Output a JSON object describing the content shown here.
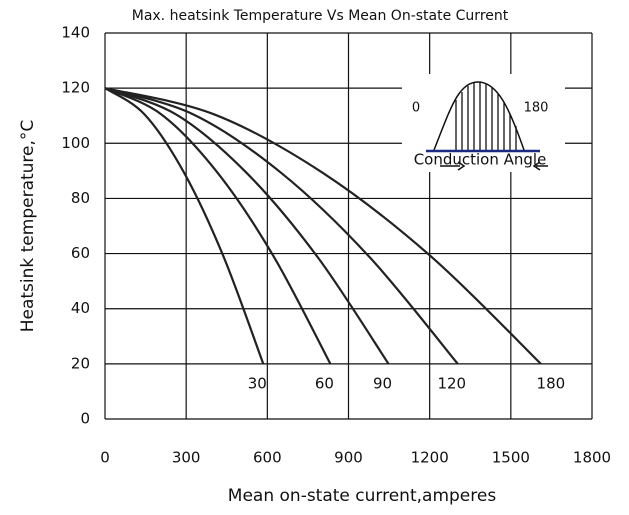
{
  "chart_data": {
    "type": "line",
    "title": "Max. heatsink Temperature Vs Mean On-state Current",
    "x_label": "Mean on-state current,amperes",
    "y_label": "Heatsink temperature,°C",
    "xlim": [
      0,
      1800
    ],
    "ylim": [
      0,
      140
    ],
    "xticks": [
      0,
      300,
      600,
      900,
      1200,
      1500,
      1800
    ],
    "yticks": [
      0,
      20,
      40,
      60,
      80,
      100,
      120,
      140
    ],
    "grid": true,
    "series": [
      {
        "name": "30",
        "color": "#222222",
        "x": [
          0,
          146,
          293,
          439,
          585
        ],
        "values": [
          120,
          110.5,
          89.2,
          58.7,
          20
        ]
      },
      {
        "name": "60",
        "color": "#222222",
        "x": [
          0,
          208,
          417,
          625,
          833
        ],
        "values": [
          120,
          110.5,
          89.2,
          58.7,
          20
        ]
      },
      {
        "name": "90",
        "color": "#222222",
        "x": [
          0,
          262,
          524,
          786,
          1048
        ],
        "values": [
          120,
          110.5,
          89.2,
          58.7,
          20
        ]
      },
      {
        "name": "120",
        "color": "#222222",
        "x": [
          0,
          326,
          652,
          978,
          1304
        ],
        "values": [
          120,
          110.5,
          89.2,
          58.7,
          20
        ]
      },
      {
        "name": "180",
        "color": "#222222",
        "x": [
          0,
          403,
          806,
          1208,
          1611
        ],
        "values": [
          120,
          110.5,
          89.2,
          58.7,
          20
        ]
      }
    ],
    "inset": {
      "start_label": "0",
      "end_label": "180",
      "caption": "Conduction Angle"
    }
  }
}
